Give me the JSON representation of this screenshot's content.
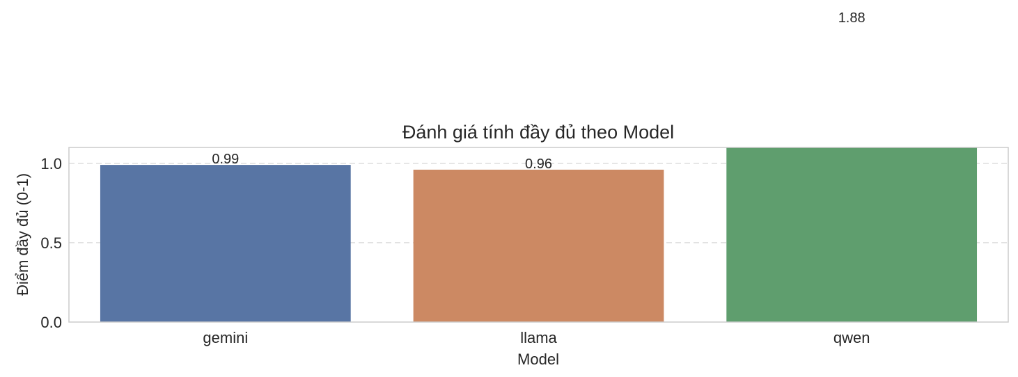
{
  "chart_data": {
    "type": "bar",
    "title": "Đánh giá tính đầy đủ theo Model",
    "xlabel": "Model",
    "ylabel": "Điểm đầy đủ (0-1)",
    "categories": [
      "gemini",
      "llama",
      "qwen"
    ],
    "values": [
      0.99,
      0.96,
      1.88
    ],
    "value_labels": [
      "0.99",
      "0.96",
      "1.88"
    ],
    "colors": [
      "#5875a4",
      "#cc8963",
      "#5f9e6e"
    ],
    "ylim": [
      0,
      1.1
    ],
    "yticks": [
      0.0,
      0.5,
      1.0
    ],
    "ytick_labels": [
      "0.0",
      "0.5",
      "1.0"
    ],
    "grid": "y-dashed",
    "legend": "none"
  }
}
